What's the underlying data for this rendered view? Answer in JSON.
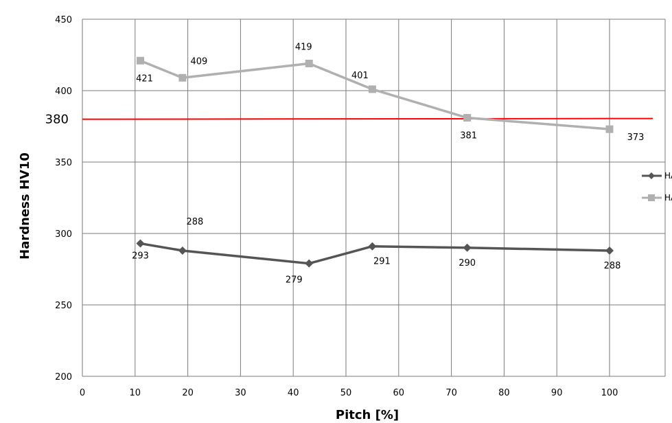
{
  "chart_data": {
    "type": "line",
    "title": "",
    "xlabel": "Pitch [%]",
    "ylabel": "Hardness HV10",
    "xlim": [
      0,
      100
    ],
    "ylim": [
      200,
      450
    ],
    "x_ticks": [
      0,
      10,
      20,
      30,
      40,
      50,
      60,
      70,
      80,
      90,
      100
    ],
    "y_ticks": [
      200,
      250,
      300,
      350,
      400,
      450
    ],
    "grid": true,
    "legend_position": "right",
    "series": [
      {
        "name": "HAZN",
        "color": "#555555",
        "marker": "diamond",
        "x": [
          11,
          19,
          43,
          55,
          73,
          100
        ],
        "values": [
          293,
          288,
          279,
          291,
          290,
          288
        ],
        "labels": [
          "293",
          "288",
          "279",
          "291",
          "290",
          "288"
        ]
      },
      {
        "name": "HAZO",
        "color": "#b0b0b0",
        "marker": "square",
        "x": [
          11,
          19,
          43,
          55,
          73,
          100
        ],
        "values": [
          421,
          409,
          419,
          401,
          381,
          373
        ],
        "labels": [
          "421",
          "409",
          "419",
          "401",
          "381",
          "373"
        ]
      }
    ],
    "reference_line": {
      "value": 380,
      "label": "380",
      "color": "#ff0000"
    }
  }
}
